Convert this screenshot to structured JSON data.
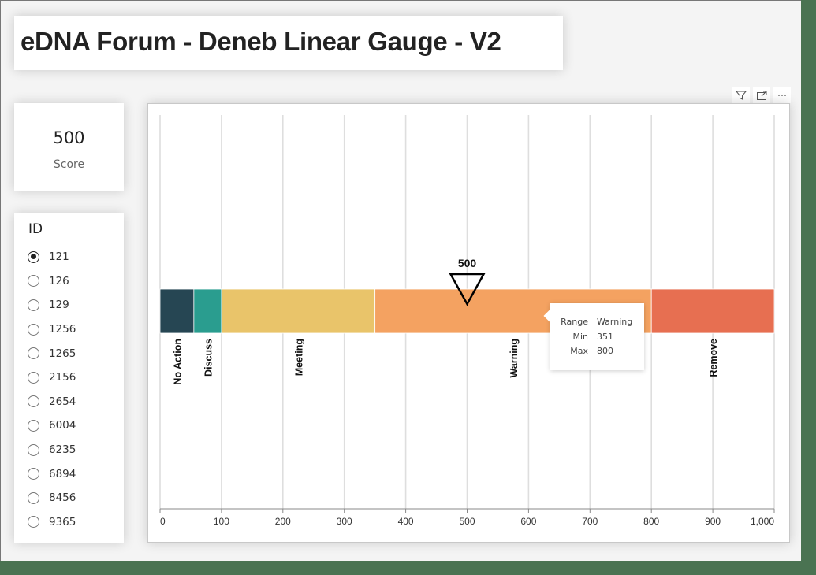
{
  "page": {
    "title": "eDNA Forum - Deneb Linear Gauge - V2"
  },
  "kpi_card": {
    "value": "500",
    "label": "Score"
  },
  "slicer": {
    "title": "ID",
    "selected": "121",
    "items": [
      {
        "label": "121",
        "checked": true
      },
      {
        "label": "126",
        "checked": false
      },
      {
        "label": "129",
        "checked": false
      },
      {
        "label": "1256",
        "checked": false
      },
      {
        "label": "1265",
        "checked": false
      },
      {
        "label": "2156",
        "checked": false
      },
      {
        "label": "2654",
        "checked": false
      },
      {
        "label": "6004",
        "checked": false
      },
      {
        "label": "6235",
        "checked": false
      },
      {
        "label": "6894",
        "checked": false
      },
      {
        "label": "8456",
        "checked": false
      },
      {
        "label": "9365",
        "checked": false
      }
    ]
  },
  "visual_header": {
    "icons": [
      "filter-icon",
      "focus-mode-icon",
      "more-options-icon"
    ]
  },
  "tooltip": {
    "rows": [
      {
        "key": "Range",
        "value": "Warning"
      },
      {
        "key": "Min",
        "value": "351"
      },
      {
        "key": "Max",
        "value": "800"
      }
    ]
  },
  "chart_data": {
    "type": "bar",
    "subtype": "linear-gauge",
    "title": "",
    "xlabel": "",
    "ylabel": "",
    "xlim": [
      0,
      1000
    ],
    "grid": true,
    "ticks": [
      0,
      100,
      200,
      300,
      400,
      500,
      600,
      700,
      800,
      900,
      1000
    ],
    "tick_labels": [
      "0",
      "100",
      "200",
      "300",
      "400",
      "500",
      "600",
      "700",
      "800",
      "900",
      "1,000"
    ],
    "ranges": [
      {
        "name": "No Action",
        "min": 0,
        "max": 55,
        "color": "#264653"
      },
      {
        "name": "Discuss",
        "min": 56,
        "max": 100,
        "color": "#2a9d8f"
      },
      {
        "name": "Meeting",
        "min": 101,
        "max": 350,
        "color": "#e9c46a"
      },
      {
        "name": "Warning",
        "min": 351,
        "max": 800,
        "color": "#f4a261"
      },
      {
        "name": "Remove",
        "min": 801,
        "max": 1000,
        "color": "#e76f51"
      }
    ],
    "marker": {
      "value": 500,
      "label": "500",
      "shape": "inverted-triangle"
    }
  }
}
